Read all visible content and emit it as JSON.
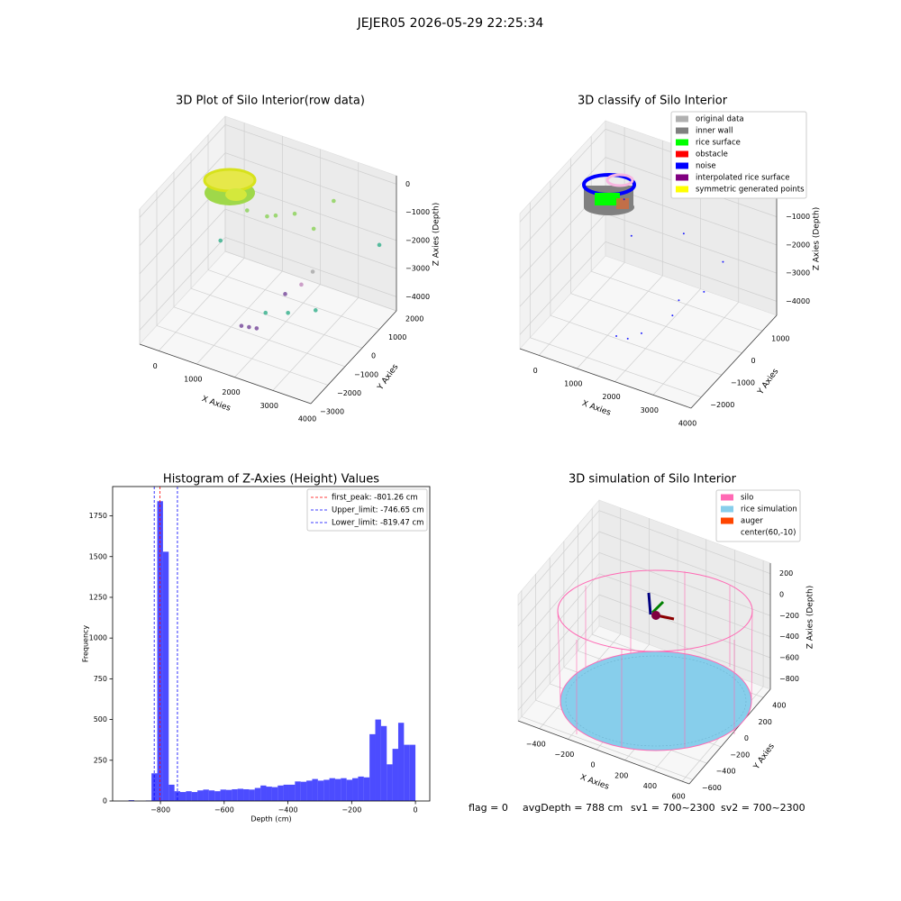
{
  "suptitle": "JEJER05 2026-05-29 22:25:34",
  "footer": [
    "flag = 0",
    "avgDepth = 788 cm",
    "sv1 = 700~2300",
    "sv2 = 700~2300"
  ],
  "chart_data": [
    {
      "type": "scatter3d",
      "title": "3D Plot of Silo Interior(row data)",
      "xlabel": "X Axies",
      "ylabel": "Y Axies",
      "zlabel": "Z Axies (Depth)",
      "xlim": [
        -500,
        4000
      ],
      "ylim": [
        -3000,
        2000
      ],
      "zlim": [
        -4500,
        300
      ],
      "xticks": [
        0,
        1000,
        2000,
        3000,
        4000
      ],
      "yticks": [
        {
          "value": -3000,
          "label": "−3000"
        },
        {
          "value": -2000,
          "label": "−2000"
        },
        {
          "value": -1000,
          "label": "−1000"
        },
        0,
        1000,
        2000
      ],
      "zticks": [
        0,
        {
          "value": -1000,
          "label": "−1000"
        },
        {
          "value": -2000,
          "label": "−2000"
        },
        {
          "value": -3000,
          "label": "−3000"
        },
        {
          "value": -4000,
          "label": "−4000"
        }
      ],
      "series": [
        {
          "color": "#7b4f9e",
          "x": [
            1500,
            1700,
            1900,
            2200
          ],
          "y": [
            -1500,
            -1500,
            -1500,
            -500
          ],
          "z": [
            -3900,
            -3850,
            -3800,
            -3100
          ]
        },
        {
          "color": "#3cb38f",
          "x": [
            2500,
            3000,
            500,
            4000,
            2000
          ],
          "y": [
            -1000,
            -500,
            -500,
            1000,
            -1200
          ],
          "z": [
            -3300,
            -3300,
            -2000,
            -1500,
            -3400
          ]
        },
        {
          "color": "#8fd45f",
          "x": [
            1500,
            2000,
            1500,
            2800,
            2500,
            1200
          ],
          "y": [
            0,
            500,
            500,
            1000,
            500,
            -500
          ],
          "z": [
            -1000,
            -1000,
            -1300,
            -500,
            -1300,
            -600
          ]
        },
        {
          "color": "#c48fc0",
          "x": [
            2400
          ],
          "y": [
            0
          ],
          "z": [
            -3000
          ]
        },
        {
          "color": "#aaaaaa",
          "x": [
            2700
          ],
          "y": [
            0
          ],
          "z": [
            -2400
          ]
        }
      ]
    },
    {
      "type": "scatter3d",
      "title": "3D classify of Silo Interior",
      "xlabel": "X Axies",
      "ylabel": "Y Axies",
      "zlabel": "Z Axies (Depth)",
      "xlim": [
        -500,
        4000
      ],
      "ylim": [
        -2500,
        1700
      ],
      "zlim": [
        -4500,
        300
      ],
      "xticks": [
        0,
        1000,
        2000,
        3000,
        4000
      ],
      "yticks": [
        {
          "value": -2000,
          "label": "−2000"
        },
        {
          "value": -1000,
          "label": "−1000"
        },
        0,
        1000
      ],
      "zticks": [
        0,
        {
          "value": -1000,
          "label": "−1000"
        },
        {
          "value": -2000,
          "label": "−2000"
        },
        {
          "value": -3000,
          "label": "−3000"
        },
        {
          "value": -4000,
          "label": "−4000"
        }
      ],
      "legend": "upper right",
      "series": [
        {
          "name": "original data",
          "color": "#b0b0b0"
        },
        {
          "name": "inner wall",
          "color": "#808080"
        },
        {
          "name": "rice surface",
          "color": "#00ff00"
        },
        {
          "name": "obstacle",
          "color": "#ff0000"
        },
        {
          "name": "noise",
          "color": "#0000ff",
          "x": [
            1500,
            1800,
            2000,
            2600,
            3500,
            2500,
            1200,
            2200,
            3000,
            900
          ],
          "y": [
            -1500,
            -1500,
            -1200,
            -800,
            0,
            -300,
            -200,
            500,
            0,
            0
          ],
          "z": [
            -3900,
            -3850,
            -3800,
            -3200,
            -1500,
            -3100,
            -1500,
            -1500,
            -2800,
            -500
          ]
        },
        {
          "name": "interpolated rice surface",
          "color": "#800080"
        },
        {
          "name": "symmetric generated points",
          "color": "#ffff00"
        }
      ]
    },
    {
      "type": "histogram",
      "title": "Histogram of Z-Axies (Height) Values",
      "xlabel": "Depth (cm)",
      "ylabel": "Frequency",
      "color": "#0000ff",
      "bins": [
        -900,
        -882,
        -864,
        -846,
        -828,
        -810,
        -792,
        -774,
        -756,
        -738,
        -720,
        -702,
        -684,
        -666,
        -648,
        -630,
        -612,
        -594,
        -576,
        -558,
        -540,
        -522,
        -504,
        -486,
        -468,
        -450,
        -432,
        -414,
        -396,
        -378,
        -360,
        -342,
        -324,
        -306,
        -288,
        -270,
        -252,
        -234,
        -216,
        -198,
        -180,
        -162,
        -144,
        -126,
        -108,
        -90,
        -72,
        -54,
        -36,
        -18,
        0
      ],
      "values": [
        5,
        0,
        0,
        3,
        170,
        1840,
        1530,
        100,
        60,
        55,
        60,
        55,
        65,
        70,
        65,
        60,
        70,
        68,
        72,
        75,
        72,
        70,
        80,
        95,
        88,
        85,
        95,
        100,
        100,
        120,
        118,
        125,
        135,
        125,
        130,
        140,
        135,
        140,
        130,
        140,
        150,
        145,
        410,
        500,
        460,
        225,
        320,
        480,
        345,
        345
      ],
      "xlim": [
        -950,
        45
      ],
      "ylim": [
        0,
        1930
      ],
      "xticks": [
        {
          "value": -800,
          "label": "−800"
        },
        {
          "value": -600,
          "label": "−600"
        },
        {
          "value": -400,
          "label": "−400"
        },
        {
          "value": -200,
          "label": "−200"
        },
        0
      ],
      "yticks": [
        0,
        250,
        500,
        750,
        1000,
        1250,
        1500,
        1750
      ],
      "legend": "upper right",
      "lines": [
        {
          "label": "first_peak: -801.26 cm",
          "value": -801.26,
          "color": "#ff0000"
        },
        {
          "label": "Upper_limit: -746.65 cm",
          "value": -746.65,
          "color": "#0000ff"
        },
        {
          "label": "Lower_limit: -819.47 cm",
          "value": -819.47,
          "color": "#0000ff"
        }
      ]
    },
    {
      "type": "simulation3d",
      "title": "3D simulation of Silo Interior",
      "xlabel": "X Axies",
      "ylabel": "Y Axies",
      "zlabel": "Z Axies (Depth)",
      "xlim": [
        -550,
        650
      ],
      "ylim": [
        -650,
        500
      ],
      "zlim": [
        -900,
        300
      ],
      "xticks": [
        {
          "value": -400,
          "label": "−400"
        },
        {
          "value": -200,
          "label": "−200"
        },
        0,
        200,
        400,
        600
      ],
      "yticks": [
        {
          "value": -600,
          "label": "−600"
        },
        {
          "value": -400,
          "label": "−400"
        },
        {
          "value": -200,
          "label": "−200"
        },
        0,
        200,
        400
      ],
      "zticks": [
        {
          "value": -800,
          "label": "−800"
        },
        {
          "value": -600,
          "label": "−600"
        },
        {
          "value": -400,
          "label": "−400"
        },
        {
          "value": -200,
          "label": "−200"
        },
        0,
        200
      ],
      "legend": "upper right",
      "series": [
        {
          "name": "silo",
          "color": "#ff69b4"
        },
        {
          "name": "rice simulation",
          "color": "#87ceeb"
        },
        {
          "name": "auger",
          "color": "#ff4500"
        },
        {
          "name": "center(60,-10)",
          "color": "#ffffff"
        }
      ]
    }
  ]
}
